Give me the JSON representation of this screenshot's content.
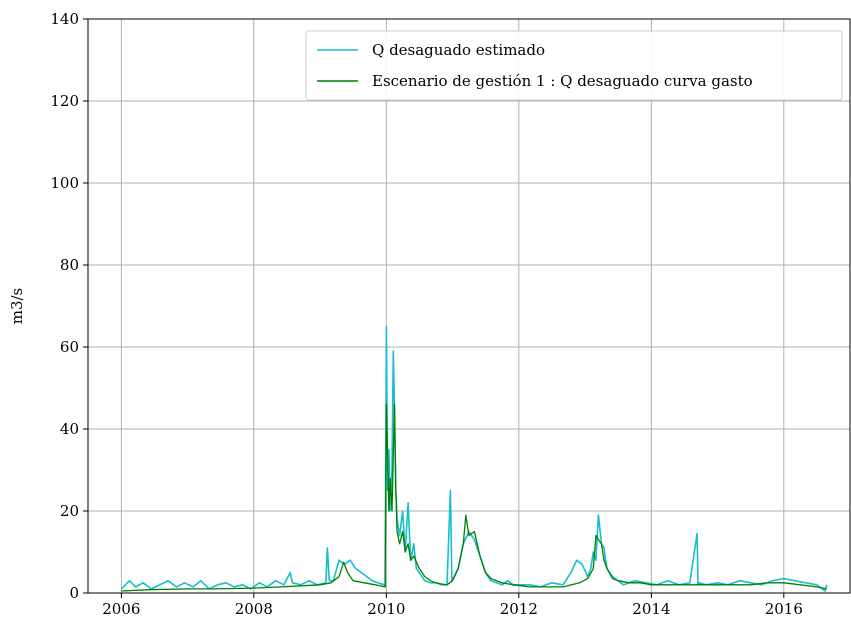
{
  "chart_data": {
    "type": "line",
    "title": "",
    "xlabel": "",
    "ylabel": "m3/s",
    "xlim": [
      "2005-07-01",
      "2016-12-31"
    ],
    "ylim": [
      0,
      140
    ],
    "x_ticks": [
      "2006",
      "2008",
      "2010",
      "2012",
      "2014",
      "2016"
    ],
    "y_ticks": [
      "0",
      "20",
      "40",
      "60",
      "80",
      "100",
      "120",
      "140"
    ],
    "grid": true,
    "legend_position": "upper-right",
    "colors": {
      "estimado": "#17becf",
      "escenario": "#008000",
      "grid": "#b0b0b0"
    },
    "series": [
      {
        "name": "Q desaguado estimado",
        "color": "#17becf",
        "x": [
          "2006-01-01",
          "2006-02-15",
          "2006-03-20",
          "2006-05-01",
          "2006-06-15",
          "2006-08-01",
          "2006-09-15",
          "2006-11-01",
          "2006-12-15",
          "2007-02-01",
          "2007-03-15",
          "2007-05-01",
          "2007-06-15",
          "2007-08-01",
          "2007-09-15",
          "2007-11-01",
          "2007-12-15",
          "2008-02-01",
          "2008-03-15",
          "2008-05-01",
          "2008-06-15",
          "2008-07-20",
          "2008-08-01",
          "2008-09-15",
          "2008-11-01",
          "2008-12-15",
          "2009-02-01",
          "2009-02-10",
          "2009-02-20",
          "2009-03-15",
          "2009-04-15",
          "2009-05-15",
          "2009-06-15",
          "2009-07-15",
          "2009-08-15",
          "2009-09-15",
          "2009-10-15",
          "2009-11-15",
          "2009-12-20",
          "2009-12-25",
          "2010-01-01",
          "2010-01-08",
          "2010-01-15",
          "2010-01-22",
          "2010-02-01",
          "2010-02-08",
          "2010-02-15",
          "2010-02-22",
          "2010-03-01",
          "2010-03-15",
          "2010-04-01",
          "2010-04-15",
          "2010-05-01",
          "2010-05-15",
          "2010-06-01",
          "2010-06-15",
          "2010-07-01",
          "2010-08-01",
          "2010-09-01",
          "2010-10-01",
          "2010-11-01",
          "2010-12-01",
          "2010-12-20",
          "2010-12-28",
          "2011-01-05",
          "2011-02-01",
          "2011-03-01",
          "2011-04-01",
          "2011-05-01",
          "2011-06-01",
          "2011-07-01",
          "2011-08-01",
          "2011-09-01",
          "2011-10-01",
          "2011-11-01",
          "2011-12-01",
          "2012-01-01",
          "2012-03-01",
          "2012-05-01",
          "2012-07-01",
          "2012-09-01",
          "2012-10-15",
          "2012-11-15",
          "2012-12-15",
          "2013-01-15",
          "2013-02-01",
          "2013-02-15",
          "2013-03-01",
          "2013-03-15",
          "2013-04-01",
          "2013-04-15",
          "2013-05-01",
          "2013-06-01",
          "2013-07-01",
          "2013-08-01",
          "2013-10-01",
          "2013-12-01",
          "2014-02-01",
          "2014-04-01",
          "2014-06-01",
          "2014-08-01",
          "2014-09-10",
          "2014-09-15",
          "2014-09-20",
          "2014-11-01",
          "2015-01-01",
          "2015-03-01",
          "2015-05-01",
          "2015-07-01",
          "2015-09-01",
          "2015-11-01",
          "2016-01-01",
          "2016-03-01",
          "2016-05-01",
          "2016-07-01",
          "2016-08-15",
          "2016-08-25"
        ],
        "y": [
          1.0,
          3.0,
          1.5,
          2.5,
          1.0,
          2.0,
          3.0,
          1.5,
          2.5,
          1.5,
          3.0,
          1.0,
          2.0,
          2.5,
          1.5,
          2.0,
          1.0,
          2.5,
          1.5,
          3.0,
          2.0,
          5.0,
          2.5,
          2.0,
          3.0,
          2.0,
          2.5,
          11.0,
          3.0,
          3.0,
          8.0,
          7.0,
          8.0,
          6.0,
          5.0,
          4.0,
          3.0,
          2.5,
          2.0,
          1.5,
          65.0,
          25.0,
          35.0,
          20.0,
          30.0,
          59.0,
          45.0,
          25.0,
          18.0,
          14.0,
          20.0,
          10.0,
          22.0,
          8.0,
          12.0,
          6.0,
          5.0,
          3.0,
          2.5,
          2.5,
          2.0,
          2.0,
          25.0,
          3.0,
          3.5,
          6.0,
          12.0,
          15.0,
          13.0,
          9.0,
          5.0,
          3.0,
          2.5,
          2.0,
          3.0,
          2.0,
          2.0,
          2.0,
          1.5,
          2.5,
          2.0,
          5.0,
          8.0,
          7.0,
          4.0,
          6.0,
          10.0,
          8.0,
          19.0,
          12.0,
          11.0,
          6.0,
          4.0,
          3.0,
          2.0,
          3.0,
          2.5,
          2.0,
          3.0,
          2.0,
          2.5,
          14.5,
          2.0,
          2.5,
          2.0,
          2.5,
          2.0,
          3.0,
          2.5,
          2.0,
          3.0,
          3.5,
          3.0,
          2.5,
          2.0,
          0.5,
          2.0
        ]
      },
      {
        "name": "Escenario de gestión 1 : Q desaguado curva gasto",
        "color": "#008000",
        "x": [
          "2006-01-01",
          "2006-06-01",
          "2007-01-01",
          "2007-06-01",
          "2008-01-01",
          "2008-06-01",
          "2009-01-01",
          "2009-03-01",
          "2009-04-15",
          "2009-05-10",
          "2009-06-01",
          "2009-07-01",
          "2009-09-01",
          "2009-11-01",
          "2009-12-25",
          "2010-01-01",
          "2010-01-15",
          "2010-01-22",
          "2010-02-01",
          "2010-02-15",
          "2010-02-22",
          "2010-03-01",
          "2010-03-15",
          "2010-04-01",
          "2010-04-15",
          "2010-05-01",
          "2010-05-15",
          "2010-06-01",
          "2010-07-01",
          "2010-08-01",
          "2010-09-01",
          "2010-10-01",
          "2010-11-01",
          "2010-12-01",
          "2011-01-01",
          "2011-02-01",
          "2011-03-01",
          "2011-03-15",
          "2011-04-01",
          "2011-05-01",
          "2011-06-01",
          "2011-07-01",
          "2011-08-01",
          "2011-10-01",
          "2011-12-01",
          "2012-03-01",
          "2012-06-01",
          "2012-09-01",
          "2012-12-01",
          "2013-01-15",
          "2013-02-15",
          "2013-03-01",
          "2013-03-15",
          "2013-04-01",
          "2013-04-15",
          "2013-05-01",
          "2013-06-01",
          "2013-07-01",
          "2013-09-01",
          "2013-11-01",
          "2014-01-01",
          "2014-04-01",
          "2014-07-01",
          "2014-10-01",
          "2015-01-01",
          "2015-04-01",
          "2015-07-01",
          "2015-10-01",
          "2016-01-01",
          "2016-04-01",
          "2016-07-01",
          "2016-08-25"
        ],
        "y": [
          0.5,
          0.8,
          1.0,
          1.0,
          1.2,
          1.5,
          2.0,
          2.5,
          4.0,
          7.5,
          5.0,
          3.0,
          2.5,
          2.0,
          1.5,
          46.0,
          20.0,
          28.0,
          20.0,
          46.0,
          25.0,
          15.0,
          12.0,
          15.0,
          10.0,
          12.0,
          8.0,
          9.0,
          6.0,
          4.0,
          3.0,
          2.5,
          2.2,
          2.0,
          3.0,
          6.0,
          12.0,
          19.0,
          14.0,
          15.0,
          9.0,
          5.0,
          3.5,
          2.5,
          2.0,
          1.5,
          1.5,
          1.5,
          2.5,
          3.5,
          6.0,
          14.0,
          13.0,
          12.0,
          8.0,
          6.0,
          3.5,
          3.0,
          2.5,
          2.5,
          2.0,
          2.0,
          2.0,
          2.0,
          2.0,
          2.0,
          2.0,
          2.5,
          2.5,
          2.0,
          1.5,
          1.0
        ]
      }
    ]
  }
}
